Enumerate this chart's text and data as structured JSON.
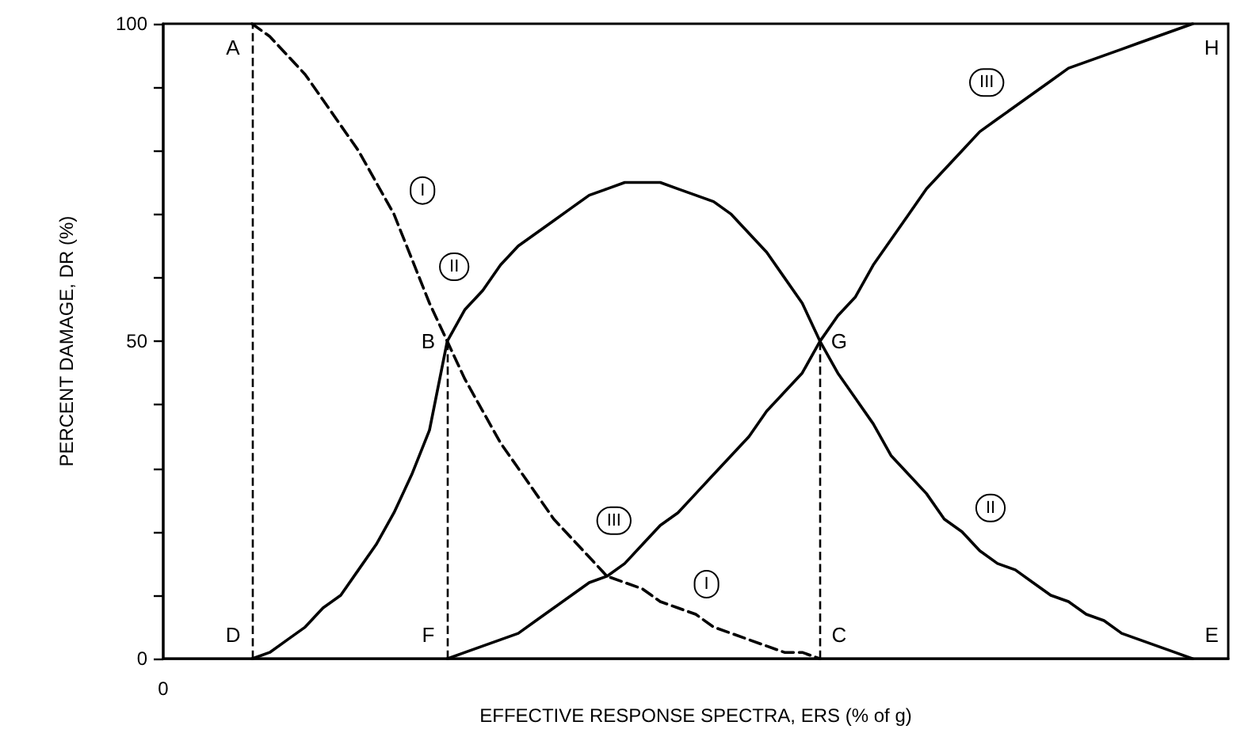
{
  "chart_data": {
    "type": "line",
    "xlabel": "EFFECTIVE RESPONSE SPECTRA, ERS (% of g)",
    "ylabel": "PERCENT DAMAGE, DR (%)",
    "categories": [
      "0",
      null,
      null,
      null,
      null,
      null,
      null,
      null,
      null,
      null,
      null,
      null,
      null,
      null,
      null,
      null,
      null,
      null,
      null,
      null,
      null,
      null,
      null,
      null,
      null,
      null,
      null,
      null,
      null,
      null,
      null,
      null,
      null,
      null,
      null,
      null,
      null,
      null,
      null,
      null,
      null,
      null,
      null,
      null,
      null,
      null,
      null,
      null,
      null,
      null,
      null,
      null,
      null,
      null,
      null,
      null,
      null,
      null,
      null,
      null,
      null
    ],
    "series": [
      {
        "name": "I",
        "color": "#000000",
        "line_style": "dashed",
        "values": [
          null,
          null,
          null,
          null,
          null,
          100,
          98,
          95,
          92,
          88,
          84,
          80,
          75,
          70,
          63,
          56,
          50,
          44,
          39,
          34,
          30,
          26,
          22,
          19,
          16,
          13,
          12,
          11,
          9,
          8,
          7,
          5,
          4,
          3,
          2,
          1,
          1,
          0,
          null,
          null,
          null,
          null,
          null,
          null,
          null,
          null,
          null,
          null,
          null,
          null,
          null,
          null,
          null,
          null,
          null,
          null,
          null,
          null,
          null,
          null,
          null
        ],
        "value_labels": [
          null,
          null,
          null,
          null,
          null,
          "A",
          null,
          null,
          null,
          null,
          null,
          null,
          null,
          null,
          null,
          null,
          "B",
          null,
          null,
          null,
          null,
          null,
          null,
          null,
          null,
          null,
          null,
          null,
          null,
          null,
          null,
          null,
          null,
          null,
          null,
          null,
          null,
          "C",
          null,
          null,
          null,
          null,
          null,
          null,
          null,
          null,
          null,
          null,
          null,
          null,
          null,
          null,
          null,
          null,
          null,
          null,
          null,
          null,
          null,
          null,
          null
        ]
      },
      {
        "name": "II",
        "color": "#000000",
        "values": [
          null,
          null,
          null,
          null,
          null,
          0,
          1,
          3,
          5,
          8,
          10,
          14,
          18,
          23,
          29,
          36,
          50,
          55,
          58,
          62,
          65,
          67,
          69,
          71,
          73,
          74,
          75,
          75,
          75,
          74,
          73,
          72,
          70,
          67,
          64,
          60,
          56,
          50,
          45,
          41,
          37,
          32,
          29,
          26,
          22,
          20,
          17,
          15,
          14,
          12,
          10,
          9,
          7,
          6,
          4,
          3,
          2,
          1,
          0,
          null,
          null
        ],
        "value_labels": [
          null,
          null,
          null,
          null,
          null,
          "D",
          null,
          null,
          null,
          null,
          null,
          null,
          null,
          null,
          null,
          null,
          null,
          null,
          null,
          null,
          null,
          null,
          null,
          null,
          null,
          null,
          null,
          null,
          null,
          null,
          null,
          null,
          null,
          null,
          null,
          null,
          null,
          null,
          null,
          null,
          null,
          null,
          null,
          null,
          null,
          null,
          null,
          null,
          null,
          null,
          null,
          null,
          null,
          null,
          null,
          null,
          null,
          null,
          "E",
          null,
          null
        ]
      },
      {
        "name": "III",
        "color": "#000000",
        "values": [
          null,
          null,
          null,
          null,
          null,
          null,
          null,
          null,
          null,
          null,
          null,
          null,
          null,
          null,
          null,
          null,
          0,
          1,
          2,
          3,
          4,
          6,
          8,
          10,
          12,
          13,
          15,
          18,
          21,
          23,
          26,
          29,
          32,
          35,
          39,
          42,
          45,
          50,
          54,
          57,
          62,
          66,
          70,
          74,
          77,
          80,
          83,
          85,
          87,
          89,
          91,
          93,
          94,
          95,
          96,
          97,
          98,
          99,
          100,
          null,
          null
        ],
        "value_labels": [
          null,
          null,
          null,
          null,
          null,
          null,
          null,
          null,
          null,
          null,
          null,
          null,
          null,
          null,
          null,
          null,
          "F",
          null,
          null,
          null,
          null,
          null,
          null,
          null,
          null,
          null,
          null,
          null,
          null,
          null,
          null,
          null,
          null,
          null,
          null,
          null,
          null,
          "G",
          null,
          null,
          null,
          null,
          null,
          null,
          null,
          null,
          null,
          null,
          null,
          null,
          null,
          null,
          null,
          null,
          null,
          null,
          null,
          null,
          "H",
          null,
          null
        ]
      }
    ],
    "ylim": [
      0,
      100
    ],
    "yticks": [
      0,
      {
        "value": 10,
        "label": null
      },
      {
        "value": 20,
        "label": null
      },
      {
        "value": 30,
        "label": null
      },
      {
        "value": 40,
        "label": null
      },
      50,
      {
        "value": 60,
        "label": null
      },
      {
        "value": 70,
        "label": null
      },
      {
        "value": 80,
        "label": null
      },
      {
        "value": 90,
        "label": null
      },
      100
    ]
  }
}
